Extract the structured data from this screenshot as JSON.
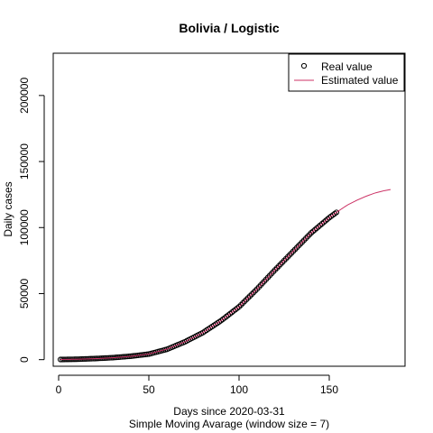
{
  "chart_data": {
    "type": "line",
    "title": "Bolivia / Logistic",
    "xlabel": "Days since 2020-03-31",
    "xlabel2": "Simple Moving Avarage (window size = 7)",
    "ylabel": "Daily cases",
    "xlim": [
      -3,
      192
    ],
    "ylim": [
      -5000,
      232000
    ],
    "xticks": [
      0,
      50,
      100,
      150
    ],
    "yticks": [
      0,
      50000,
      100000,
      150000,
      200000
    ],
    "grid": false,
    "legend_position": "top-right",
    "colors": {
      "real": "#000000",
      "estimated": "#cc3366"
    },
    "series": [
      {
        "name": "Real value",
        "style": "points",
        "x_start": 1,
        "x_end": 154,
        "x": [
          1,
          10,
          20,
          30,
          40,
          50,
          60,
          70,
          80,
          90,
          100,
          110,
          120,
          130,
          140,
          150,
          154
        ],
        "y": [
          100,
          300,
          800,
          1500,
          2600,
          4200,
          7800,
          13500,
          20500,
          29500,
          40000,
          53500,
          68000,
          82000,
          96000,
          107500,
          111500
        ]
      },
      {
        "name": "Estimated value",
        "style": "line",
        "x": [
          1,
          10,
          20,
          30,
          40,
          50,
          60,
          70,
          80,
          90,
          100,
          110,
          120,
          130,
          140,
          150,
          155,
          160,
          165,
          170,
          175,
          180,
          184
        ],
        "y": [
          150,
          300,
          700,
          1400,
          2500,
          4300,
          8000,
          13500,
          20500,
          29500,
          40000,
          53500,
          68000,
          82000,
          96000,
          107500,
          112500,
          117000,
          120500,
          123500,
          126000,
          127800,
          128800
        ]
      }
    ]
  }
}
